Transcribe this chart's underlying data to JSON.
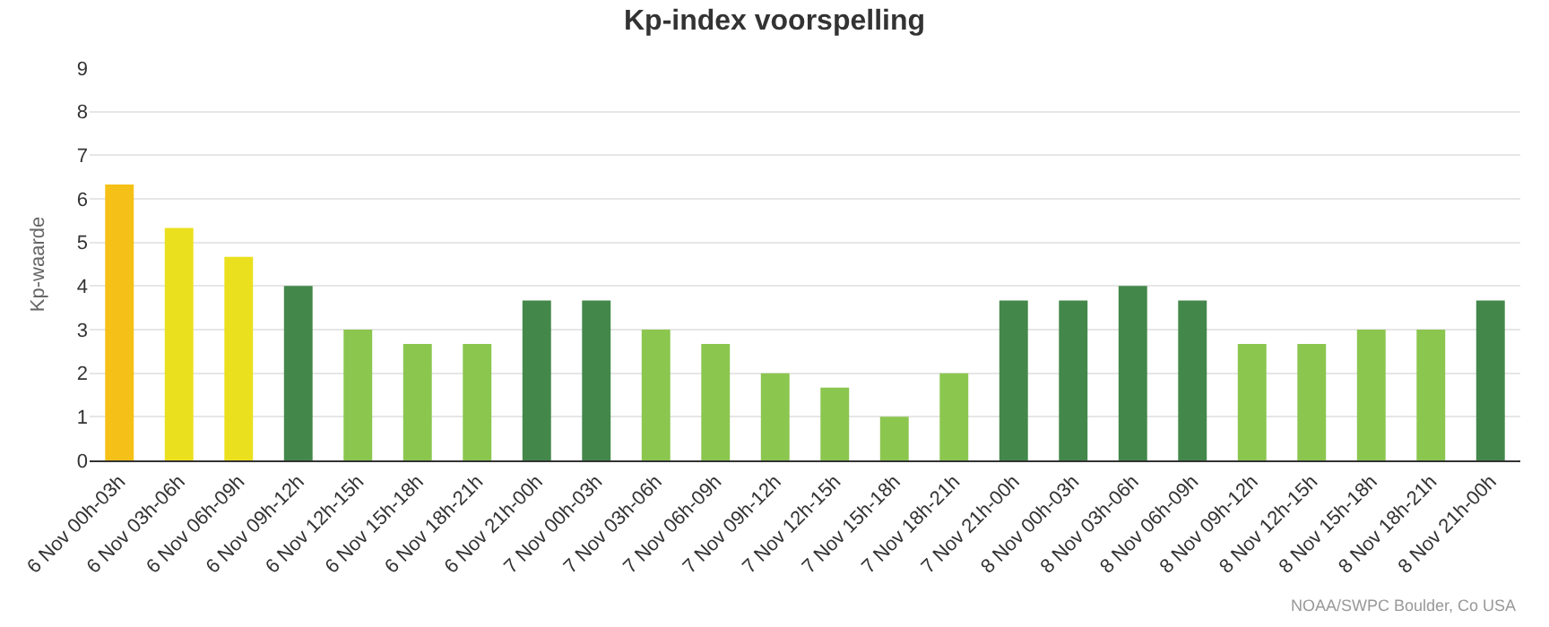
{
  "chart_data": {
    "type": "bar",
    "title": "Kp-index voorspelling",
    "ylabel": "Kp-waarde",
    "categories": [
      "6 Nov 00h-03h",
      "6 Nov 03h-06h",
      "6 Nov 06h-09h",
      "6 Nov 09h-12h",
      "6 Nov 12h-15h",
      "6 Nov 15h-18h",
      "6 Nov 18h-21h",
      "6 Nov 21h-00h",
      "7 Nov 00h-03h",
      "7 Nov 03h-06h",
      "7 Nov 06h-09h",
      "7 Nov 09h-12h",
      "7 Nov 12h-15h",
      "7 Nov 15h-18h",
      "7 Nov 18h-21h",
      "7 Nov 21h-00h",
      "8 Nov 00h-03h",
      "8 Nov 03h-06h",
      "8 Nov 06h-09h",
      "8 Nov 09h-12h",
      "8 Nov 12h-15h",
      "8 Nov 15h-18h",
      "8 Nov 18h-21h",
      "8 Nov 21h-00h"
    ],
    "values": [
      6.33,
      5.33,
      4.67,
      4,
      3,
      2.67,
      2.67,
      3.67,
      3.67,
      3,
      2.67,
      2,
      1.67,
      1,
      2,
      3.67,
      3.67,
      4,
      3.67,
      2.67,
      2.67,
      3,
      3,
      3.67
    ],
    "colors": [
      "#f5c017",
      "#ebe01e",
      "#ebe01e",
      "#43884a",
      "#8bc64f",
      "#8bc64f",
      "#8bc64f",
      "#43884a",
      "#43884a",
      "#8bc64f",
      "#8bc64f",
      "#8bc64f",
      "#8bc64f",
      "#8bc64f",
      "#8bc64f",
      "#43884a",
      "#43884a",
      "#43884a",
      "#43884a",
      "#8bc64f",
      "#8bc64f",
      "#8bc64f",
      "#8bc64f",
      "#43884a"
    ],
    "ylim": [
      0,
      9
    ],
    "yticks": [
      0,
      1,
      2,
      3,
      4,
      5,
      6,
      7,
      8,
      9
    ],
    "grid": "y",
    "legend": false,
    "annotations": [
      "NOAA/SWPC Boulder, Co USA"
    ]
  }
}
